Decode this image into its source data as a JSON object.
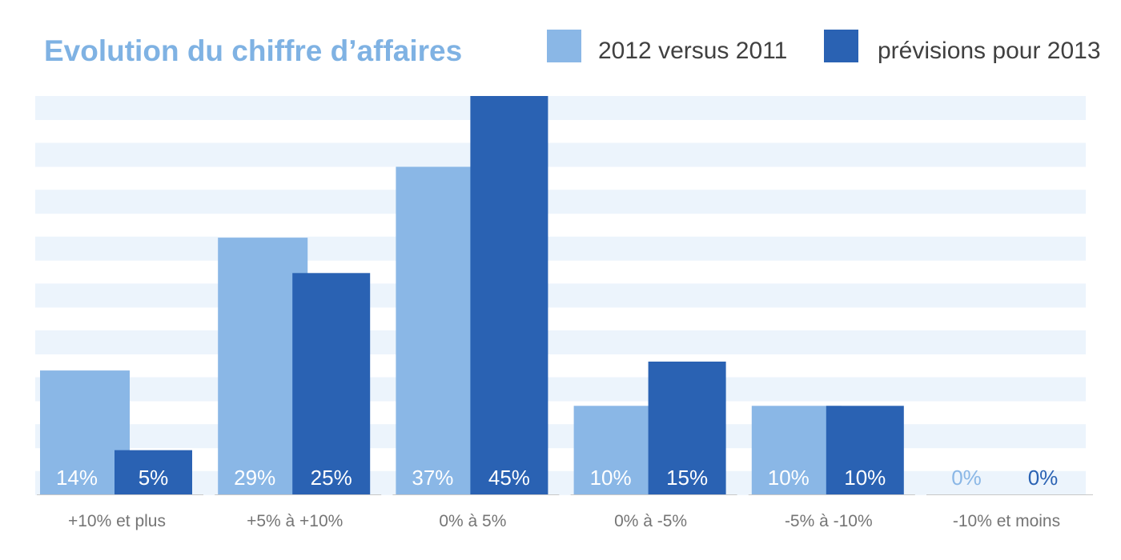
{
  "chart_data": {
    "type": "bar",
    "title": "Evolution du chiffre d’affaires",
    "categories": [
      "+10% et plus",
      "+5% à +10%",
      "0% à 5%",
      "0% à -5%",
      "-5% à -10%",
      "-10% et moins"
    ],
    "series": [
      {
        "name": "2012 versus 2011",
        "values": [
          14,
          29,
          37,
          10,
          10,
          0
        ],
        "labels": [
          "14%",
          "29%",
          "37%",
          "10%",
          "10%",
          "0%"
        ],
        "color": "#8ab7e6"
      },
      {
        "name": "prévisions pour 2013",
        "values": [
          5,
          25,
          45,
          15,
          10,
          0
        ],
        "labels": [
          "5%",
          "25%",
          "45%",
          "15%",
          "10%",
          "0%"
        ],
        "color": "#2a62b3"
      }
    ],
    "ylim": [
      0,
      45
    ],
    "grid": "horizontal bands",
    "legend_position": "top-right",
    "colors": {
      "title": "#7fb2e3",
      "band": "#ecf4fc",
      "value_label": "#ffffff",
      "category_label": "#757575",
      "legend_text": "#404040",
      "axis_line": "#c8c8c8"
    }
  }
}
